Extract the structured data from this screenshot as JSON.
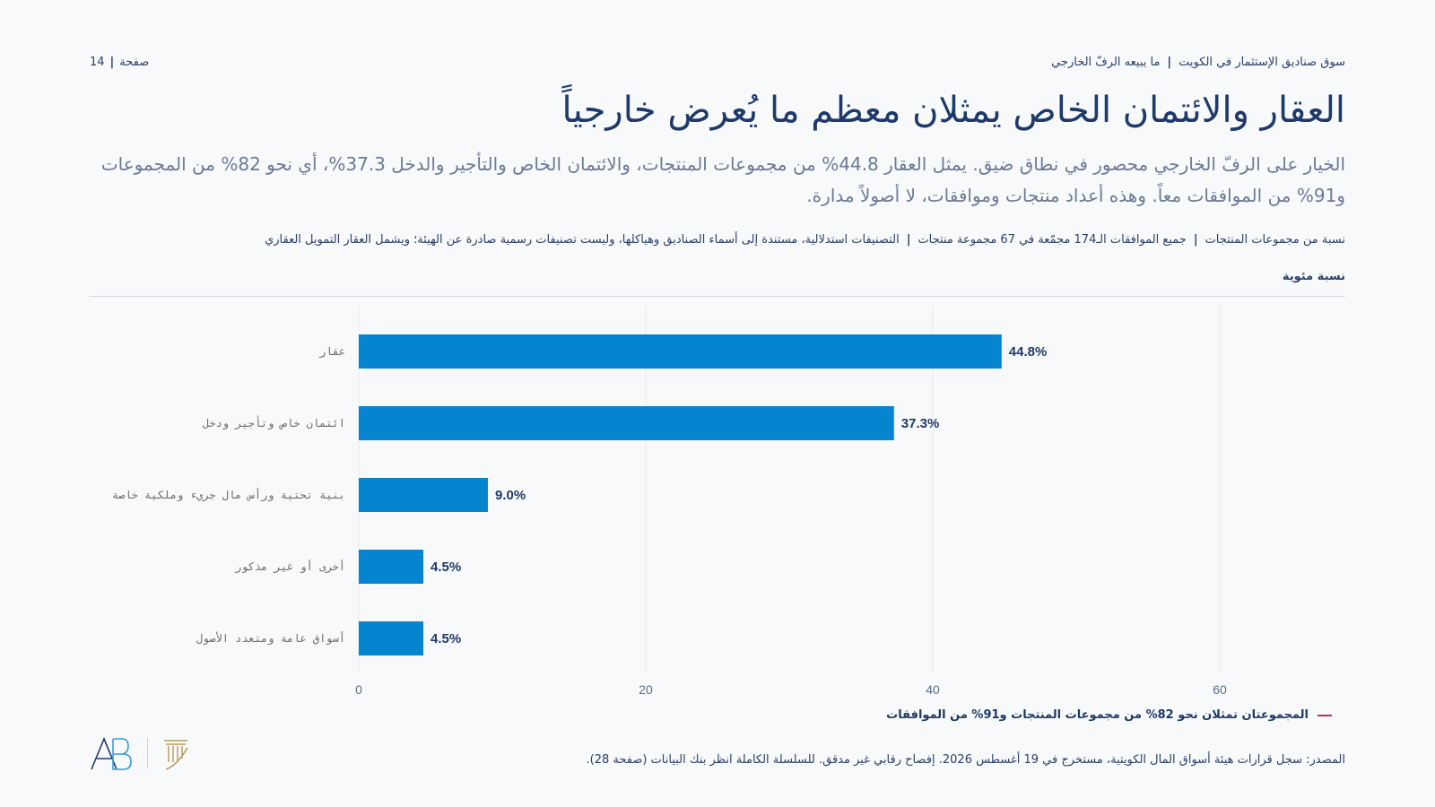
{
  "header": {
    "section": "سوق صناديق الإستثمار في الكويت",
    "subsection": "ما يبيعه الرفّ الخارجي",
    "page_label": "صفحة",
    "page_number": "14"
  },
  "title": "العقار والائتمان الخاص يمثلان معظم ما يُعرض خارجياً",
  "subtitle": "الخيار على الرفّ الخارجي محصور في نطاق ضيق. يمثل العقار 44.8% من مجموعات المنتجات، والائتمان الخاص والتأجير والدخل 37.3%، أي نحو 82% من المجموعات و91% من الموافقات معاً. وهذه أعداد منتجات وموافقات، لا أصولاً مدارة.",
  "meta": {
    "item1": "نسبة من مجموعات المنتجات",
    "item2": "جميع الموافقات الـ174 مجمّعة في 67 مجموعة منتجات",
    "item3": "التصنيفات استدلالية، مستندة إلى أسماء الصناديق وهياكلها، وليست تصنيفات رسمية صادرة عن الهيئة؛ ويشمل العقار التمويل العقاري"
  },
  "unit_label": "نسبة مئوية",
  "chart_data": {
    "type": "bar",
    "orientation": "horizontal",
    "categories": [
      "عقار",
      "ائتمان خاص وتأجير ودخل",
      "بنية تحتية ورأس مال جريء وملكية خاصة",
      "أخرى أو غير مذكور",
      "أسواق عامة ومتعدد الأصول"
    ],
    "values": [
      44.8,
      37.3,
      9.0,
      4.5,
      4.5
    ],
    "value_labels": [
      "44.8%",
      "37.3%",
      "9.0%",
      "4.5%",
      "4.5%"
    ],
    "xlim": [
      0,
      64
    ],
    "xticks": [
      0,
      20,
      40,
      60
    ],
    "bar_color": "#0584d0",
    "grid": true
  },
  "legend": {
    "text": "المجموعتان تمثلان نحو 82% من مجموعات المنتجات و91% من الموافقات",
    "color": "#b8364b"
  },
  "footer": {
    "source": "المصدر: سجل قرارات هيئة أسواق المال الكويتية، مستخرج في 19 أغسطس 2026. إفصاح رقابي غير مدقق. للسلسلة الكاملة انظر بنك البيانات (صفحة 28)."
  },
  "logo": {
    "text": "AB",
    "primary_color": "#1f3a68",
    "accent_color": "#b89a5e"
  }
}
